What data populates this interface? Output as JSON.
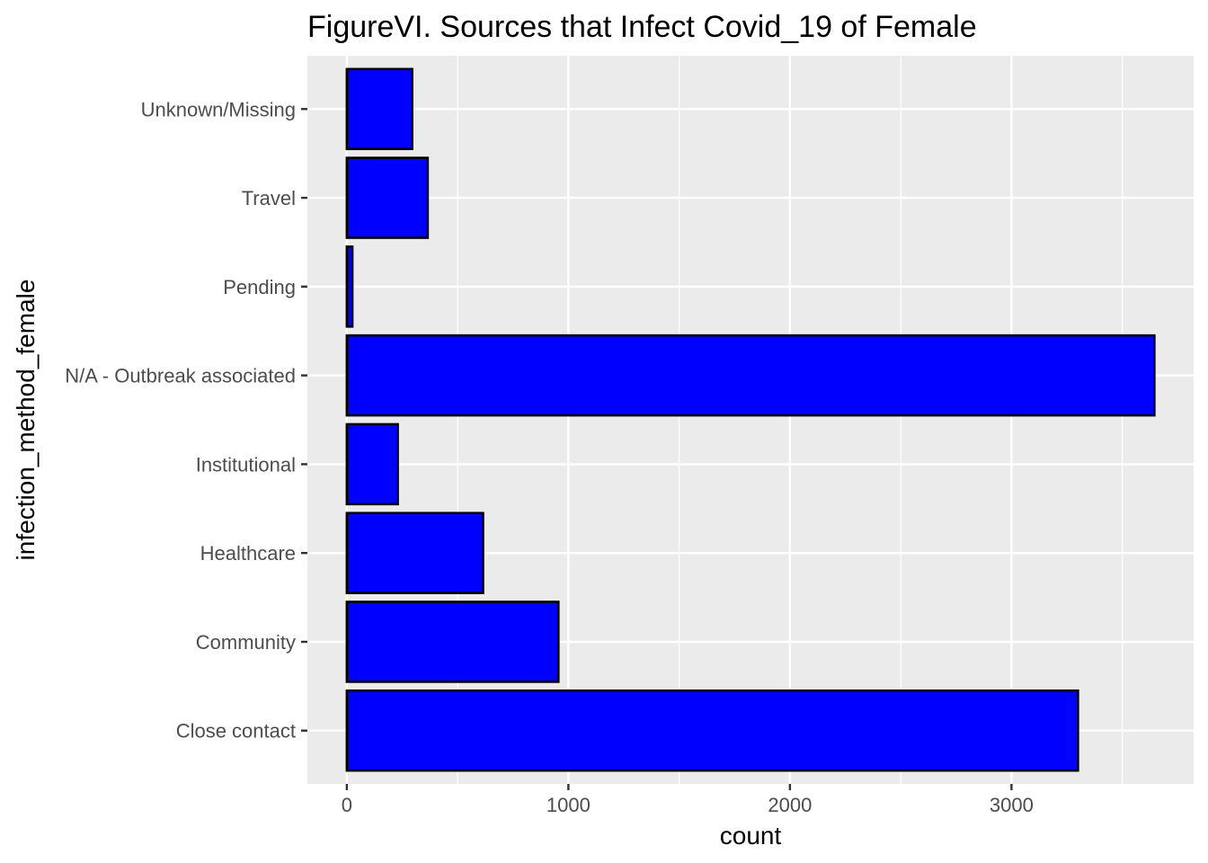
{
  "chart_data": {
    "type": "bar",
    "orientation": "horizontal",
    "title": "FigureVI. Sources that Infect Covid_19 of Female",
    "xlabel": "count",
    "ylabel": "infection_method_female",
    "categories": [
      "Close contact",
      "Community",
      "Healthcare",
      "Institutional",
      "N/A - Outbreak associated",
      "Pending",
      "Travel",
      "Unknown/Missing"
    ],
    "values": [
      3300,
      955,
      615,
      230,
      3645,
      25,
      365,
      295
    ],
    "x_ticks": [
      0,
      1000,
      2000,
      3000
    ],
    "x_tick_labels": [
      "0",
      "1000",
      "2000",
      "3000"
    ],
    "xlim": [
      -178,
      3822
    ],
    "grid": true,
    "legend": "none",
    "colors": {
      "bar_fill": "#0000ff",
      "bar_stroke": "#000000",
      "panel": "#ebebeb",
      "grid": "#ffffff"
    }
  }
}
